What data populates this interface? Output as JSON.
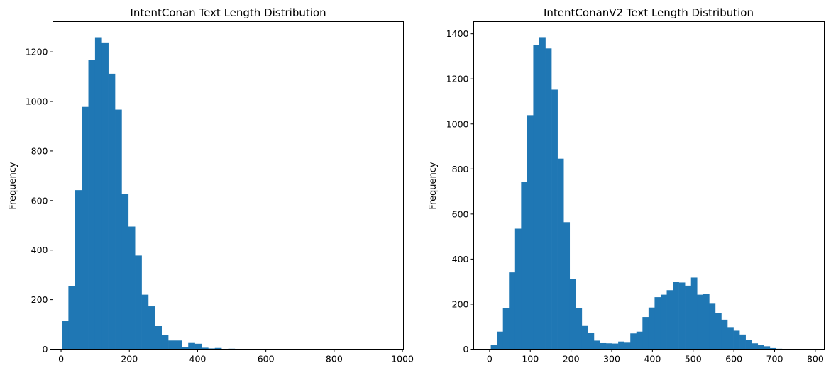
{
  "chart_data": [
    {
      "type": "bar",
      "title": "IntentConan Text Length Distribution",
      "xlabel": "",
      "ylabel": "Frequency",
      "xlim": [
        -24,
        1003
      ],
      "ylim": [
        0,
        1322
      ],
      "xticks": [
        0,
        200,
        400,
        600,
        800,
        1000
      ],
      "yticks": [
        0,
        200,
        400,
        600,
        800,
        1000,
        1200
      ],
      "bin_start": 2,
      "bin_width": 19.5,
      "color": "#1f77b4",
      "values": [
        113,
        256,
        642,
        978,
        1168,
        1259,
        1238,
        1112,
        967,
        628,
        495,
        378,
        220,
        173,
        93,
        58,
        35,
        35,
        10,
        28,
        22,
        6,
        3,
        5,
        1,
        2,
        1,
        1,
        1,
        1,
        1,
        0,
        0,
        0,
        1,
        0,
        0,
        0,
        0,
        0,
        0,
        0,
        0,
        0,
        0,
        0,
        0,
        0,
        0,
        1
      ]
    },
    {
      "type": "bar",
      "title": "IntentConanV2 Text Length Distribution",
      "xlabel": "",
      "ylabel": "Frequency",
      "xlim": [
        -39,
        822
      ],
      "ylim": [
        0,
        1454
      ],
      "xticks": [
        0,
        100,
        200,
        300,
        400,
        500,
        600,
        700,
        800
      ],
      "yticks": [
        0,
        200,
        400,
        600,
        800,
        1000,
        1200,
        1400
      ],
      "bin_start": 3,
      "bin_width": 14.9,
      "color": "#1f77b4",
      "values": [
        18,
        78,
        183,
        341,
        535,
        744,
        1039,
        1351,
        1385,
        1335,
        1152,
        846,
        564,
        311,
        181,
        103,
        74,
        38,
        30,
        26,
        25,
        34,
        32,
        70,
        78,
        143,
        185,
        231,
        242,
        262,
        300,
        296,
        282,
        318,
        242,
        246,
        205,
        160,
        131,
        98,
        82,
        65,
        41,
        26,
        18,
        13,
        5,
        2,
        1,
        1
      ]
    }
  ]
}
